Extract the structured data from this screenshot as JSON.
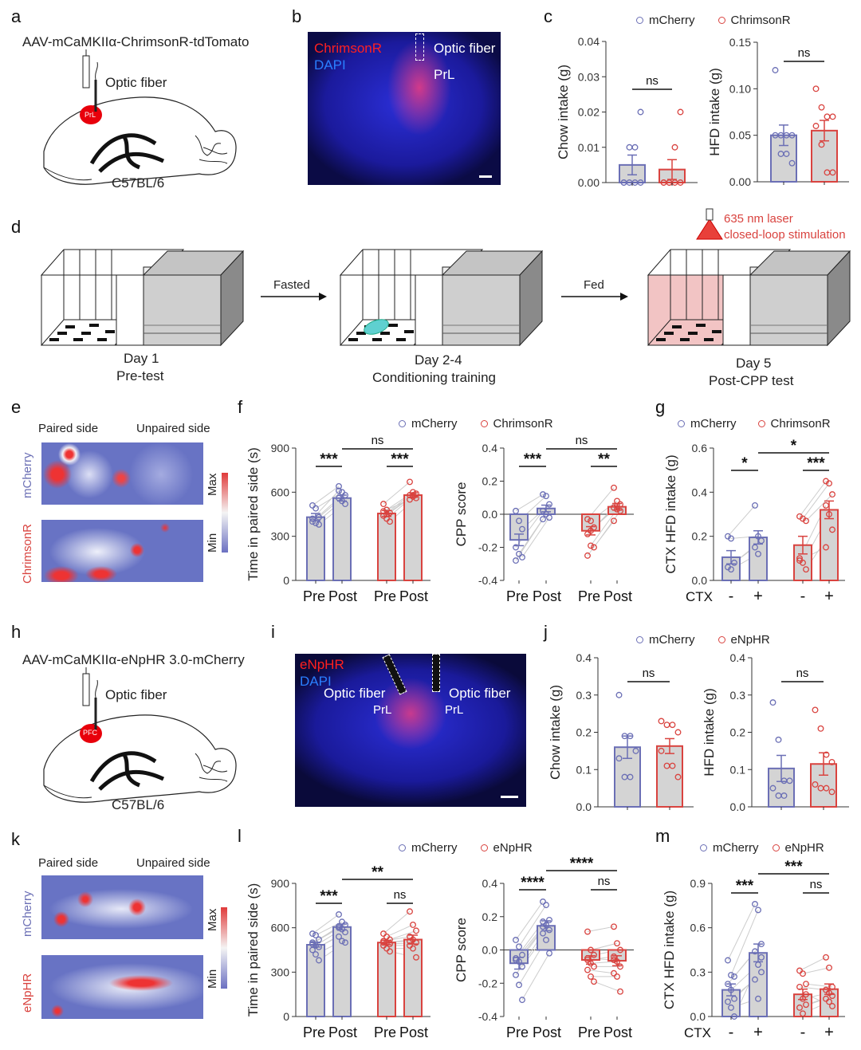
{
  "colors": {
    "mcherry": "#6b6fb5",
    "red": "#d9433f",
    "bar_fill": "#d4d4d4",
    "laser": "#e8403a"
  },
  "panel_letters": [
    "a",
    "b",
    "c",
    "d",
    "e",
    "f",
    "g",
    "h",
    "i",
    "j",
    "k",
    "l",
    "m"
  ],
  "panel_a": {
    "construct": "AAV-mCaMKIIα-ChrimsonR-tdTomato",
    "fiber": "Optic fiber",
    "region": "PrL",
    "strain": "C57BL/6"
  },
  "panel_b": {
    "stain1": "ChrimsonR",
    "stain2": "DAPI",
    "fiber": "Optic fiber",
    "region": "PrL"
  },
  "panel_d": {
    "arrow1": "Fasted",
    "arrow2": "Fed",
    "day1": "Day 1",
    "day1_sub": "Pre-test",
    "day2": "Day 2-4",
    "day2_sub": "Conditioning training",
    "laser1": "635 nm laser",
    "laser2": "closed-loop stimulation",
    "day5": "Day 5",
    "day5_sub": "Post-CPP test"
  },
  "panel_e": {
    "paired": "Paired side",
    "unpaired": "Unpaired side",
    "row1": "mCherry",
    "row2": "ChrimsonR",
    "max": "Max",
    "min": "Min"
  },
  "panel_h": {
    "construct": "AAV-mCaMKIIα-eNpHR 3.0-mCherry",
    "fiber": "Optic fiber",
    "region": "PFC",
    "strain": "C57BL/6"
  },
  "panel_i": {
    "stain1": "eNpHR",
    "stain2": "DAPI",
    "fiber_left": "Optic fiber",
    "fiber_right": "Optic fiber",
    "region_left": "PrL",
    "region_right": "PrL"
  },
  "panel_k": {
    "paired": "Paired side",
    "unpaired": "Unpaired side",
    "row1": "mCherry",
    "row2": "eNpHR",
    "max": "Max",
    "min": "Min"
  },
  "legends": {
    "c": [
      "mCherry",
      "ChrimsonR"
    ],
    "f": [
      "mCherry",
      "ChrimsonR"
    ],
    "g": [
      "mCherry",
      "ChrimsonR"
    ],
    "j": [
      "mCherry",
      "eNpHR"
    ],
    "l": [
      "mCherry",
      "eNpHR"
    ],
    "m": [
      "mCherry",
      "eNpHR"
    ]
  },
  "chart_data": [
    {
      "id": "c1",
      "type": "bar",
      "ylabel": "Chow intake (g)",
      "ylim": [
        0,
        0.04
      ],
      "yticks": [
        "0.00",
        "0.01",
        "0.02",
        "0.03",
        "0.04"
      ],
      "xprefix": "",
      "categories": [
        "",
        ""
      ],
      "groups": [
        "mCherry",
        "ChrimsonR"
      ],
      "paired": false,
      "means": [
        0.005,
        0.0037
      ],
      "sem": [
        0.0028,
        0.0028
      ],
      "points": [
        [
          0,
          0,
          0,
          0,
          0,
          0.01,
          0.01,
          0.02
        ],
        [
          0,
          0,
          0,
          0,
          0,
          0,
          0.01,
          0.02
        ]
      ],
      "sig": [
        {
          "from": 0,
          "to": 1,
          "label": "ns"
        }
      ]
    },
    {
      "id": "c2",
      "type": "bar",
      "ylabel": "HFD intake (g)",
      "ylim": [
        0,
        0.15
      ],
      "yticks": [
        "0.00",
        "0.05",
        "0.10",
        "0.15"
      ],
      "xprefix": "",
      "categories": [
        "",
        ""
      ],
      "groups": [
        "mCherry",
        "ChrimsonR"
      ],
      "paired": false,
      "means": [
        0.05,
        0.055
      ],
      "sem": [
        0.011,
        0.011
      ],
      "points": [
        [
          0.12,
          0.05,
          0.05,
          0.05,
          0.05,
          0.03,
          0.03,
          0.02
        ],
        [
          0.1,
          0.08,
          0.07,
          0.07,
          0.06,
          0.04,
          0.01,
          0.01
        ]
      ],
      "sig": [
        {
          "from": 0,
          "to": 1,
          "label": "ns"
        }
      ]
    },
    {
      "id": "f1",
      "type": "bar",
      "ylabel": "Time in paired side (s)",
      "ylim": [
        0,
        900
      ],
      "yticks": [
        "0",
        "300",
        "600",
        "900"
      ],
      "xprefix": "",
      "categories": [
        "Pre",
        "Post",
        "Pre",
        "Post"
      ],
      "groups": [
        "mCherry",
        "mCherry",
        "ChrimsonR",
        "ChrimsonR"
      ],
      "paired": true,
      "means": [
        430,
        560,
        455,
        580
      ],
      "sem": [
        25,
        20,
        20,
        15
      ],
      "points": [
        [
          510,
          490,
          430,
          400,
          390,
          380,
          420
        ],
        [
          640,
          600,
          580,
          560,
          540,
          520,
          610
        ],
        [
          520,
          480,
          460,
          440,
          420,
          400,
          470,
          450
        ],
        [
          670,
          600,
          590,
          580,
          570,
          560,
          550,
          580
        ]
      ],
      "sig": [
        {
          "from": 0,
          "to": 1,
          "label": "***"
        },
        {
          "from": 2,
          "to": 3,
          "label": "***"
        },
        {
          "from": 1,
          "to": 3,
          "label": "ns"
        }
      ]
    },
    {
      "id": "f2",
      "type": "bar",
      "ylabel": "CPP score",
      "ylim": [
        -0.4,
        0.4
      ],
      "yticks": [
        "-0.4",
        "-0.2",
        "0.0",
        "0.2",
        "0.4"
      ],
      "xprefix": "",
      "categories": [
        "Pre",
        "Post",
        "Pre",
        "Post"
      ],
      "groups": [
        "mCherry",
        "mCherry",
        "ChrimsonR",
        "ChrimsonR"
      ],
      "paired": true,
      "means": [
        -0.155,
        0.035,
        -0.1,
        0.045
      ],
      "sem": [
        0.035,
        0.02,
        0.025,
        0.02
      ],
      "points": [
        [
          0.02,
          -0.04,
          -0.09,
          -0.2,
          -0.24,
          -0.26,
          -0.28
        ],
        [
          0.12,
          0.11,
          0.06,
          0.02,
          0.0,
          -0.02,
          -0.03
        ],
        [
          -0.03,
          -0.04,
          -0.08,
          -0.12,
          -0.19,
          -0.2,
          -0.25,
          -0.1
        ],
        [
          0.16,
          0.08,
          0.06,
          0.04,
          0.03,
          0.02,
          -0.04,
          0.05
        ]
      ],
      "sig": [
        {
          "from": 0,
          "to": 1,
          "label": "***"
        },
        {
          "from": 2,
          "to": 3,
          "label": "**"
        },
        {
          "from": 1,
          "to": 3,
          "label": "ns"
        }
      ]
    },
    {
      "id": "g",
      "type": "bar",
      "ylabel": "CTX HFD intake (g)",
      "ylim": [
        0,
        0.6
      ],
      "yticks": [
        "0.0",
        "0.2",
        "0.4",
        "0.6"
      ],
      "xprefix": "CTX",
      "categories": [
        "-",
        "+",
        "-",
        "+"
      ],
      "groups": [
        "mCherry",
        "mCherry",
        "ChrimsonR",
        "ChrimsonR"
      ],
      "paired": true,
      "means": [
        0.105,
        0.195,
        0.16,
        0.32
      ],
      "sem": [
        0.03,
        0.03,
        0.04,
        0.04
      ],
      "points": [
        [
          0.2,
          0.19,
          0.08,
          0.06,
          0.05
        ],
        [
          0.34,
          0.2,
          0.18,
          0.15,
          0.12
        ],
        [
          0.29,
          0.28,
          0.27,
          0.1,
          0.08,
          0.05,
          0.09
        ],
        [
          0.45,
          0.44,
          0.39,
          0.34,
          0.3,
          0.23,
          0.15
        ]
      ],
      "sig": [
        {
          "from": 0,
          "to": 1,
          "label": "*"
        },
        {
          "from": 2,
          "to": 3,
          "label": "***"
        },
        {
          "from": 1,
          "to": 3,
          "label": "*"
        }
      ]
    },
    {
      "id": "j1",
      "type": "bar",
      "ylabel": "Chow intake (g)",
      "ylim": [
        0,
        0.4
      ],
      "yticks": [
        "0.0",
        "0.1",
        "0.2",
        "0.3",
        "0.4"
      ],
      "xprefix": "",
      "categories": [
        "",
        ""
      ],
      "groups": [
        "mCherry",
        "eNpHR"
      ],
      "paired": false,
      "means": [
        0.16,
        0.163
      ],
      "sem": [
        0.03,
        0.02
      ],
      "points": [
        [
          0.3,
          0.19,
          0.19,
          0.15,
          0.13,
          0.08,
          0.08
        ],
        [
          0.23,
          0.22,
          0.22,
          0.2,
          0.15,
          0.11,
          0.11,
          0.08
        ]
      ],
      "sig": [
        {
          "from": 0,
          "to": 1,
          "label": "ns"
        }
      ]
    },
    {
      "id": "j2",
      "type": "bar",
      "ylabel": "HFD intake (g)",
      "ylim": [
        0,
        0.4
      ],
      "yticks": [
        "0.0",
        "0.1",
        "0.2",
        "0.3",
        "0.4"
      ],
      "xprefix": "",
      "categories": [
        "",
        ""
      ],
      "groups": [
        "mCherry",
        "eNpHR"
      ],
      "paired": false,
      "means": [
        0.103,
        0.115
      ],
      "sem": [
        0.035,
        0.03
      ],
      "points": [
        [
          0.28,
          0.18,
          0.07,
          0.07,
          0.05,
          0.03,
          0.03
        ],
        [
          0.26,
          0.21,
          0.14,
          0.12,
          0.06,
          0.05,
          0.05,
          0.04
        ]
      ],
      "sig": [
        {
          "from": 0,
          "to": 1,
          "label": "ns"
        }
      ]
    },
    {
      "id": "l1",
      "type": "bar",
      "ylabel": "Time in paired side (s)",
      "ylim": [
        0,
        900
      ],
      "yticks": [
        "0",
        "300",
        "600",
        "900"
      ],
      "xprefix": "",
      "categories": [
        "Pre",
        "Post",
        "Pre",
        "Post"
      ],
      "groups": [
        "mCherry",
        "mCherry",
        "eNpHR",
        "eNpHR"
      ],
      "paired": true,
      "means": [
        485,
        605,
        500,
        520
      ],
      "sem": [
        15,
        20,
        15,
        30
      ],
      "points": [
        [
          560,
          550,
          520,
          500,
          480,
          470,
          450,
          420,
          380,
          490
        ],
        [
          690,
          640,
          620,
          600,
          590,
          570,
          540,
          510,
          500,
          610
        ],
        [
          560,
          540,
          520,
          510,
          500,
          490,
          480,
          460,
          440,
          500
        ],
        [
          710,
          620,
          580,
          540,
          520,
          500,
          480,
          460,
          400,
          510
        ]
      ],
      "sig": [
        {
          "from": 0,
          "to": 1,
          "label": "***"
        },
        {
          "from": 2,
          "to": 3,
          "label": "ns"
        },
        {
          "from": 1,
          "to": 3,
          "label": "**"
        }
      ]
    },
    {
      "id": "l2",
      "type": "bar",
      "ylabel": "CPP score",
      "ylim": [
        -0.4,
        0.4
      ],
      "yticks": [
        "-0.4",
        "-0.2",
        "0.0",
        "0.2",
        "0.4"
      ],
      "xprefix": "",
      "categories": [
        "Pre",
        "Post",
        "Pre",
        "Post"
      ],
      "groups": [
        "mCherry",
        "mCherry",
        "eNpHR",
        "eNpHR"
      ],
      "paired": true,
      "means": [
        -0.08,
        0.145,
        -0.06,
        -0.065
      ],
      "sem": [
        0.035,
        0.03,
        0.025,
        0.03
      ],
      "points": [
        [
          0.06,
          0.02,
          -0.03,
          -0.05,
          -0.07,
          -0.1,
          -0.15,
          -0.21,
          -0.3,
          -0.06
        ],
        [
          0.29,
          0.27,
          0.18,
          0.17,
          0.15,
          0.12,
          0.1,
          0.06,
          -0.02,
          0.14
        ],
        [
          0.11,
          0.0,
          -0.03,
          -0.06,
          -0.08,
          -0.1,
          -0.12,
          -0.16,
          -0.19,
          -0.05
        ],
        [
          0.14,
          0.04,
          0.0,
          -0.04,
          -0.07,
          -0.1,
          -0.14,
          -0.16,
          -0.25,
          -0.06
        ]
      ],
      "sig": [
        {
          "from": 0,
          "to": 1,
          "label": "****"
        },
        {
          "from": 2,
          "to": 3,
          "label": "ns"
        },
        {
          "from": 1,
          "to": 3,
          "label": "****"
        }
      ]
    },
    {
      "id": "m",
      "type": "bar",
      "ylabel": "CTX HFD intake (g)",
      "ylim": [
        0,
        0.9
      ],
      "yticks": [
        "0.0",
        "0.3",
        "0.6",
        "0.9"
      ],
      "xprefix": "CTX",
      "categories": [
        "-",
        "+",
        "-",
        "+"
      ],
      "groups": [
        "mCherry",
        "mCherry",
        "eNpHR",
        "eNpHR"
      ],
      "paired": true,
      "means": [
        0.18,
        0.43,
        0.15,
        0.185
      ],
      "sem": [
        0.04,
        0.06,
        0.035,
        0.035
      ],
      "points": [
        [
          0.38,
          0.28,
          0.27,
          0.22,
          0.18,
          0.12,
          0.1,
          0.06,
          0.0
        ],
        [
          0.76,
          0.72,
          0.49,
          0.44,
          0.35,
          0.3,
          0.25,
          0.12,
          0.4
        ],
        [
          0.31,
          0.29,
          0.22,
          0.2,
          0.12,
          0.08,
          0.06,
          0.02,
          0.15
        ],
        [
          0.4,
          0.33,
          0.2,
          0.18,
          0.16,
          0.14,
          0.12,
          0.1,
          0.07
        ]
      ],
      "sig": [
        {
          "from": 0,
          "to": 1,
          "label": "***"
        },
        {
          "from": 2,
          "to": 3,
          "label": "ns"
        },
        {
          "from": 1,
          "to": 3,
          "label": "***"
        }
      ]
    }
  ]
}
